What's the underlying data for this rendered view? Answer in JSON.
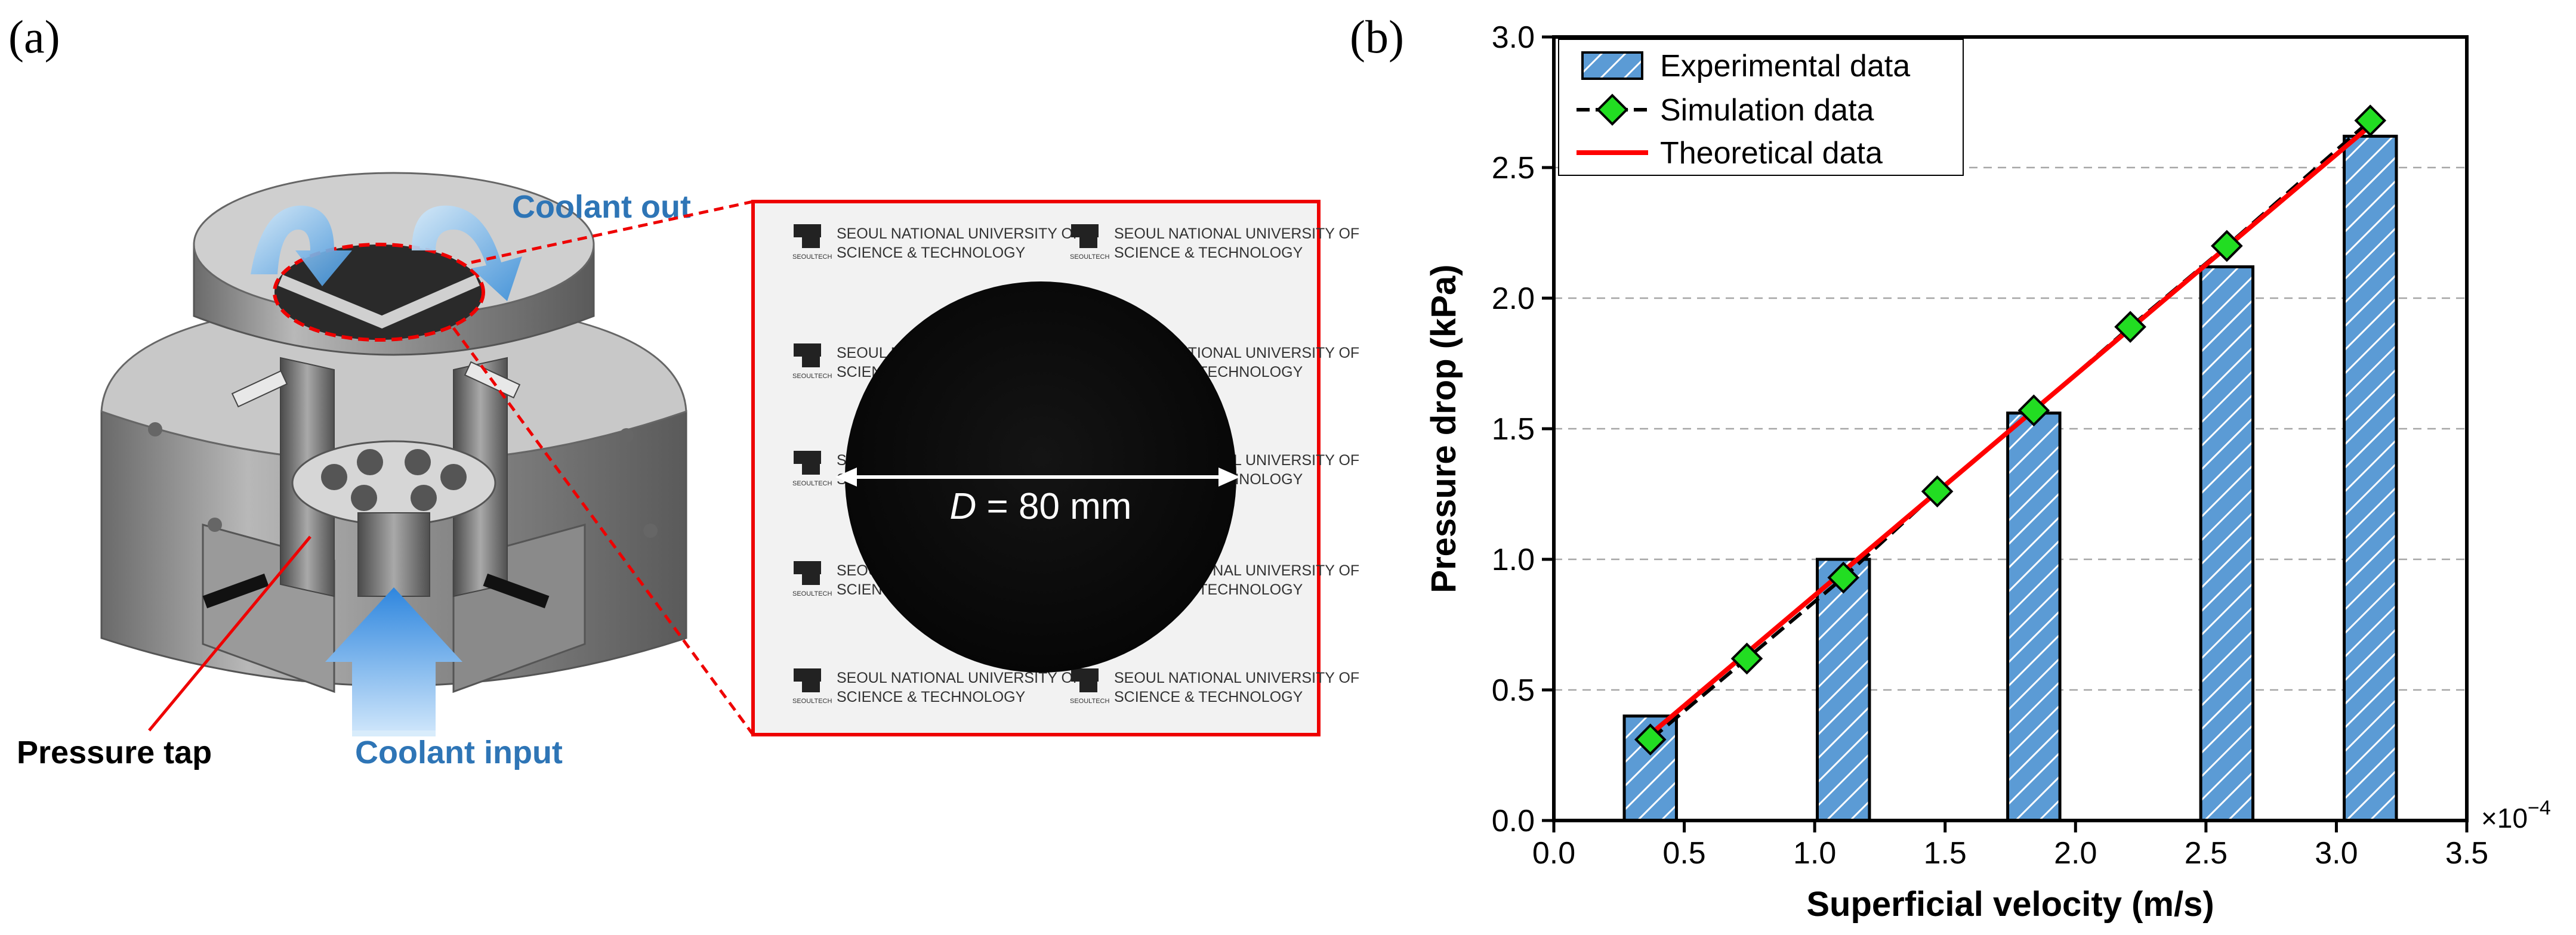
{
  "panel_a": {
    "label": "(a)",
    "callouts": {
      "coolant_out": "Coolant out",
      "coolant_input": "Coolant input",
      "pressure_tap": "Pressure tap"
    },
    "photo": {
      "watermark_line1": "SEOUL NATIONAL UNIVERSITY OF",
      "watermark_line2": "SCIENCE & TECHNOLOGY",
      "watermark_logo_text": "SEOULTECH",
      "dimension_symbol": "D",
      "dimension_value": " = 80 mm"
    }
  },
  "panel_b": {
    "label": "(b)"
  },
  "colors": {
    "bar_fill": "#5b9bd5",
    "bar_hatch": "#ffffff",
    "simulation_marker": "#22dd22",
    "theory_line": "#ff0000",
    "callout_blue": "#2e75b6",
    "highlight_red": "#ee0000"
  },
  "chart_data": {
    "type": "bar",
    "title": "",
    "xlabel": "Superficial velocity (m/s)",
    "ylabel": "Pressure drop (kPa)",
    "x_multiplier": "×10",
    "x_multiplier_exp": "−4",
    "xlim": [
      0.0,
      3.5
    ],
    "ylim": [
      0.0,
      3.0
    ],
    "xticks": [
      0.0,
      0.5,
      1.0,
      1.5,
      2.0,
      2.5,
      3.0,
      3.5
    ],
    "yticks": [
      0.0,
      0.5,
      1.0,
      1.5,
      2.0,
      2.5,
      3.0
    ],
    "xtick_labels": [
      "0.0",
      "0.5",
      "1.0",
      "1.5",
      "2.0",
      "2.5",
      "3.0",
      "3.5"
    ],
    "ytick_labels": [
      "0.0",
      "0.5",
      "1.0",
      "1.5",
      "2.0",
      "2.5",
      "3.0"
    ],
    "grid": "horizontal-dashed",
    "legend_position": "top-left",
    "bar_width": 0.2,
    "series": [
      {
        "name": "Experimental data",
        "kind": "bar",
        "x": [
          0.37,
          1.11,
          1.84,
          2.58,
          3.13
        ],
        "values": [
          0.4,
          1.0,
          1.56,
          2.12,
          2.62
        ]
      },
      {
        "name": "Simulation data",
        "kind": "line-marker",
        "x": [
          0.37,
          0.74,
          1.11,
          1.47,
          1.84,
          2.21,
          2.58,
          3.13
        ],
        "values": [
          0.31,
          0.62,
          0.93,
          1.26,
          1.57,
          1.89,
          2.2,
          2.68
        ]
      },
      {
        "name": "Theoretical data",
        "kind": "line",
        "x": [
          0.37,
          3.13
        ],
        "values": [
          0.33,
          2.66
        ]
      }
    ]
  }
}
